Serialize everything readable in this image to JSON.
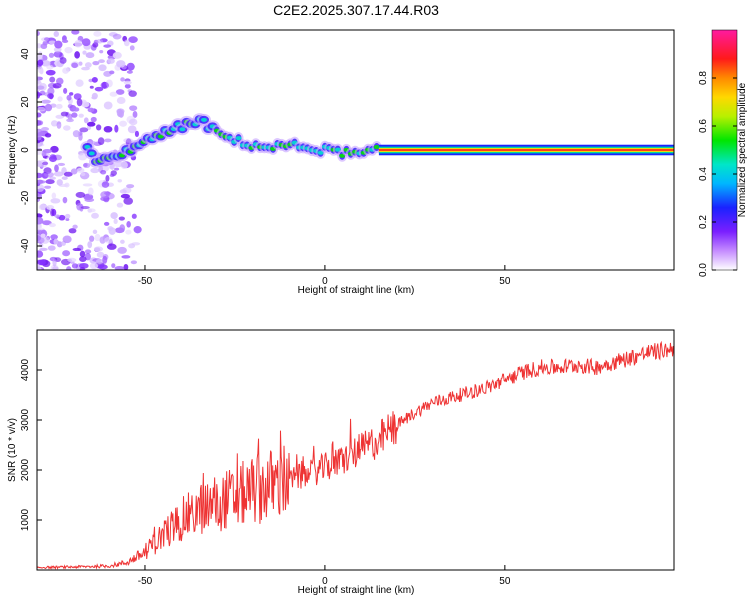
{
  "figure": {
    "title": "C2E2.2025.307.17.44.R03"
  },
  "colorbar": {
    "label": "Normalized spectral amplitude",
    "ticks": [
      "0.0",
      "0.2",
      "0.4",
      "0.6",
      "0.8"
    ],
    "range": [
      0,
      1
    ],
    "colormap": "rainbow (white-purple-blue-cyan-green-yellow-orange-red-magenta)"
  },
  "chart_data": [
    {
      "type": "heatmap",
      "title": "",
      "xlabel": "Height of straight line (km)",
      "ylabel": "Frequency (Hz)",
      "xlim": [
        -80,
        97
      ],
      "ylim": [
        -50,
        50
      ],
      "xticks": [
        -50,
        0,
        50
      ],
      "yticks": [
        -40,
        -20,
        0,
        20,
        40
      ],
      "grid": false,
      "ridge": [
        {
          "x": -64,
          "y": -5
        },
        {
          "x": -57,
          "y": -3
        },
        {
          "x": -52,
          "y": 3
        },
        {
          "x": -47,
          "y": 5
        },
        {
          "x": -43,
          "y": 8
        },
        {
          "x": -38,
          "y": 11
        },
        {
          "x": -34,
          "y": 12
        },
        {
          "x": -30,
          "y": 7
        },
        {
          "x": -25,
          "y": 4
        },
        {
          "x": -20,
          "y": 2
        },
        {
          "x": -15,
          "y": 1
        },
        {
          "x": -10,
          "y": 2
        },
        {
          "x": -5,
          "y": 1
        },
        {
          "x": 0,
          "y": 0
        },
        {
          "x": 5,
          "y": -1
        },
        {
          "x": 10,
          "y": -2
        },
        {
          "x": 15,
          "y": 0
        },
        {
          "x": 97,
          "y": 0
        }
      ]
    },
    {
      "type": "line",
      "title": "",
      "xlabel": "Height of straight line (km)",
      "ylabel": "SNR (10 * v/v)",
      "xlim": [
        -80,
        97
      ],
      "ylim": [
        0,
        4800
      ],
      "xticks": [
        -50,
        0,
        50
      ],
      "yticks": [
        1000,
        2000,
        3000,
        4000
      ],
      "color": "#ee3333",
      "grid": false,
      "series": [
        {
          "x": [
            -80,
            -70,
            -60,
            -55,
            -50,
            -45,
            -40,
            -35,
            -30,
            -25,
            -20,
            -15,
            -10,
            -5,
            0,
            5,
            10,
            15,
            20,
            25,
            30,
            35,
            40,
            45,
            50,
            55,
            60,
            65,
            70,
            75,
            80,
            85,
            90,
            95,
            97
          ],
          "values": [
            50,
            60,
            80,
            150,
            350,
            700,
            1000,
            1200,
            1350,
            1450,
            1600,
            1700,
            1800,
            1900,
            2050,
            2200,
            2400,
            2600,
            2900,
            3150,
            3350,
            3450,
            3550,
            3650,
            3800,
            3950,
            4050,
            4050,
            4100,
            4050,
            4150,
            4250,
            4350,
            4400,
            4450
          ]
        }
      ]
    }
  ]
}
